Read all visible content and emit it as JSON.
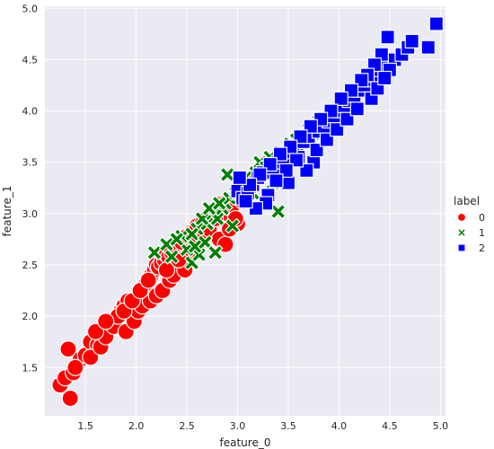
{
  "chart_data": {
    "type": "scatter",
    "xlabel": "feature_0",
    "ylabel": "feature_1",
    "xlim": [
      1.1,
      5.05
    ],
    "ylim": [
      1.03,
      5.02
    ],
    "x_ticks": [
      "1.5",
      "2.0",
      "2.5",
      "3.0",
      "3.5",
      "4.0",
      "4.5",
      "5.0"
    ],
    "y_ticks": [
      "1.5",
      "2.0",
      "2.5",
      "3.0",
      "3.5",
      "4.0",
      "4.5",
      "5.0"
    ],
    "grid": true,
    "background": "#eaeaf2",
    "legend": {
      "title": "label",
      "placement": "right",
      "entries": [
        {
          "label": "0",
          "marker": "circle",
          "color": "#ff0000"
        },
        {
          "label": "1",
          "marker": "x",
          "color": "#008000"
        },
        {
          "label": "2",
          "marker": "square",
          "color": "#0000ff"
        }
      ]
    },
    "series": [
      {
        "name": "0",
        "marker": "circle",
        "color": "#ff0000",
        "x": [
          1.25,
          1.3,
          1.35,
          1.38,
          1.33,
          1.45,
          1.5,
          1.55,
          1.62,
          1.68,
          1.72,
          1.75,
          1.8,
          1.85,
          1.88,
          1.92,
          1.95,
          2.0,
          2.03,
          2.05,
          2.08,
          2.1,
          2.12,
          2.15,
          2.18,
          2.2,
          2.22,
          2.25,
          2.28,
          2.3,
          2.32,
          2.35,
          2.38,
          2.4,
          2.42,
          2.45,
          2.5,
          2.55,
          2.6,
          2.65,
          2.7,
          2.75,
          2.8,
          2.85,
          2.9,
          2.95,
          3.0,
          3.05,
          1.4,
          1.55,
          1.65,
          1.7,
          1.78,
          1.82,
          1.9,
          1.98,
          2.02,
          2.06,
          2.14,
          2.2,
          2.26,
          2.33,
          2.37,
          2.48,
          2.52,
          2.58,
          2.62,
          2.68,
          2.72,
          2.78,
          2.82,
          2.88,
          2.92,
          2.98,
          1.6,
          1.7,
          1.88,
          1.96,
          2.04,
          2.12,
          2.3,
          2.42
        ],
        "y": [
          1.33,
          1.4,
          1.2,
          1.45,
          1.68,
          1.58,
          1.62,
          1.75,
          1.72,
          1.78,
          1.85,
          1.92,
          1.98,
          2.05,
          2.1,
          2.15,
          2.0,
          2.12,
          2.2,
          2.25,
          2.3,
          2.32,
          2.35,
          2.4,
          2.45,
          2.5,
          2.48,
          2.52,
          2.55,
          2.6,
          2.58,
          2.62,
          2.5,
          2.68,
          2.7,
          2.72,
          2.78,
          2.82,
          2.88,
          2.9,
          2.95,
          3.0,
          3.05,
          3.1,
          3.0,
          3.08,
          2.9,
          3.12,
          1.5,
          1.6,
          1.7,
          1.8,
          1.9,
          2.0,
          1.85,
          1.95,
          2.05,
          2.1,
          2.15,
          2.2,
          2.25,
          2.35,
          2.4,
          2.45,
          2.6,
          2.65,
          2.75,
          2.8,
          2.85,
          2.95,
          2.75,
          2.7,
          2.85,
          2.95,
          1.85,
          1.95,
          2.05,
          2.15,
          2.25,
          2.35,
          2.45,
          2.55
        ]
      },
      {
        "name": "1",
        "marker": "x",
        "color": "#008000",
        "x": [
          2.18,
          2.3,
          2.35,
          2.45,
          2.5,
          2.55,
          2.6,
          2.62,
          2.7,
          2.75,
          2.8,
          2.85,
          2.88,
          2.92,
          2.95,
          3.0,
          3.05,
          3.1,
          3.15,
          3.2,
          3.25,
          3.3,
          3.35,
          3.4,
          3.45,
          3.5,
          3.55,
          3.6,
          3.62,
          3.68,
          3.72,
          3.78,
          3.8,
          2.4,
          2.55,
          2.65,
          2.72,
          2.82,
          2.9,
          2.98,
          3.02,
          3.08,
          3.12,
          3.18,
          3.22,
          3.28,
          3.32,
          3.38,
          3.42,
          3.48,
          3.52,
          3.58,
          3.65,
          3.7,
          3.75,
          2.58,
          2.68,
          2.78
        ],
        "y": [
          2.62,
          2.7,
          2.58,
          2.78,
          2.65,
          2.52,
          2.85,
          2.6,
          2.9,
          3.0,
          2.95,
          3.05,
          3.1,
          3.15,
          2.88,
          3.2,
          3.25,
          3.3,
          3.2,
          3.35,
          3.4,
          3.45,
          3.3,
          3.02,
          3.5,
          3.55,
          3.6,
          3.65,
          3.7,
          3.75,
          3.8,
          3.85,
          3.9,
          2.75,
          2.8,
          2.95,
          3.05,
          3.1,
          3.38,
          3.2,
          3.28,
          3.35,
          3.25,
          3.4,
          3.5,
          3.45,
          3.55,
          3.48,
          3.6,
          3.58,
          3.68,
          3.72,
          3.7,
          3.82,
          3.78,
          2.68,
          2.72,
          2.62
        ]
      },
      {
        "name": "2",
        "marker": "square",
        "color": "#0000ff",
        "x": [
          3.0,
          3.05,
          3.1,
          3.15,
          3.2,
          3.25,
          3.3,
          3.35,
          3.4,
          3.45,
          3.5,
          3.55,
          3.6,
          3.65,
          3.7,
          3.75,
          3.8,
          3.85,
          3.9,
          3.95,
          4.0,
          4.05,
          4.1,
          4.15,
          4.2,
          4.25,
          4.3,
          4.35,
          4.4,
          4.45,
          4.48,
          4.55,
          4.62,
          4.68,
          4.72,
          4.88,
          4.96,
          4.5,
          4.42,
          4.35,
          4.28,
          4.22,
          4.12,
          4.02,
          3.92,
          3.82,
          3.72,
          3.62,
          3.52,
          3.42,
          3.32,
          3.22,
          3.12,
          3.02,
          3.78,
          3.88,
          3.98,
          4.08,
          4.18,
          4.32,
          4.38,
          4.45,
          3.68,
          3.58,
          3.48,
          3.38,
          3.28,
          3.18,
          3.08
        ],
        "y": [
          3.22,
          3.15,
          3.2,
          3.28,
          3.35,
          3.4,
          3.18,
          3.45,
          3.5,
          3.55,
          3.3,
          3.6,
          3.55,
          3.7,
          3.75,
          3.5,
          3.8,
          3.85,
          3.9,
          3.95,
          4.0,
          4.05,
          4.1,
          4.15,
          4.2,
          4.25,
          4.3,
          4.35,
          4.4,
          4.45,
          4.72,
          4.5,
          4.55,
          4.62,
          4.68,
          4.62,
          4.85,
          4.4,
          4.55,
          4.45,
          4.35,
          4.3,
          4.2,
          4.12,
          4.0,
          3.92,
          3.85,
          3.75,
          3.65,
          3.58,
          3.48,
          3.38,
          3.28,
          3.35,
          3.62,
          3.72,
          3.82,
          3.92,
          4.02,
          4.12,
          4.22,
          4.32,
          3.42,
          3.52,
          3.42,
          3.32,
          3.1,
          3.05,
          3.12
        ]
      }
    ]
  }
}
